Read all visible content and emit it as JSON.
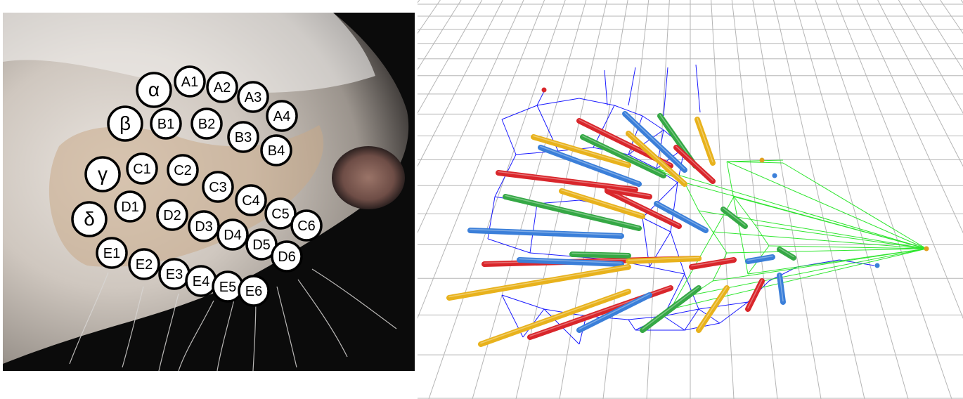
{
  "photo_panel": {
    "whisker_labels": [
      {
        "id": "alpha",
        "text": "α"
      },
      {
        "id": "A1",
        "text": "A1"
      },
      {
        "id": "A2",
        "text": "A2"
      },
      {
        "id": "A3",
        "text": "A3"
      },
      {
        "id": "A4",
        "text": "A4"
      },
      {
        "id": "beta",
        "text": "β"
      },
      {
        "id": "B1",
        "text": "B1"
      },
      {
        "id": "B2",
        "text": "B2"
      },
      {
        "id": "B3",
        "text": "B3"
      },
      {
        "id": "B4",
        "text": "B4"
      },
      {
        "id": "gamma",
        "text": "γ"
      },
      {
        "id": "C1",
        "text": "C1"
      },
      {
        "id": "C2",
        "text": "C2"
      },
      {
        "id": "C3",
        "text": "C3"
      },
      {
        "id": "C4",
        "text": "C4"
      },
      {
        "id": "C5",
        "text": "C5"
      },
      {
        "id": "C6",
        "text": "C6"
      },
      {
        "id": "delta",
        "text": "δ"
      },
      {
        "id": "D1",
        "text": "D1"
      },
      {
        "id": "D2",
        "text": "D2"
      },
      {
        "id": "D3",
        "text": "D3"
      },
      {
        "id": "D4",
        "text": "D4"
      },
      {
        "id": "D5",
        "text": "D5"
      },
      {
        "id": "D6",
        "text": "D6"
      },
      {
        "id": "E1",
        "text": "E1"
      },
      {
        "id": "E2",
        "text": "E2"
      },
      {
        "id": "E3",
        "text": "E3"
      },
      {
        "id": "E4",
        "text": "E4"
      },
      {
        "id": "E5",
        "text": "E5"
      },
      {
        "id": "E6",
        "text": "E6"
      }
    ]
  },
  "render_panel": {
    "colors": {
      "grid": "#b5b5b5",
      "mesh_blue": "#1a1aff",
      "mesh_green": "#2ee62e",
      "whisker_red": "#d9262b",
      "whisker_yellow": "#e8b21c",
      "whisker_blue": "#3b7fd9",
      "whisker_green": "#35a845",
      "tip_orange": "#e0a020"
    }
  }
}
